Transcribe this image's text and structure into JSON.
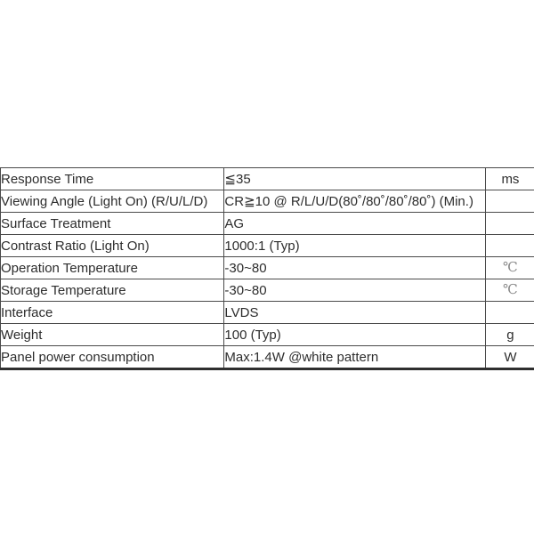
{
  "document": {
    "type": "specification-table",
    "background_color": "#ffffff",
    "text_color": "#2d2d2d",
    "border_color": "#4a4a4a",
    "temp_unit_color": "#8a8a8a"
  },
  "table": {
    "columns": [
      "parameter",
      "value",
      "unit"
    ],
    "rows": [
      {
        "param": "Response Time",
        "value": "≦35",
        "unit": "ms"
      },
      {
        "param": "Viewing Angle (Light On) (R/U/L/D)",
        "value": "CR≧10 @ R/L/U/D(80˚/80˚/80˚/80˚) (Min.)",
        "unit": ""
      },
      {
        "param": "Surface Treatment",
        "value": "AG",
        "unit": ""
      },
      {
        "param": "Contrast Ratio (Light On)",
        "value": "1000:1 (Typ)",
        "unit": ""
      },
      {
        "param": "Operation Temperature",
        "value": "-30~80",
        "unit": "℃"
      },
      {
        "param": "Storage Temperature",
        "value": "-30~80",
        "unit": "℃"
      },
      {
        "param": "Interface",
        "value": "LVDS",
        "unit": ""
      },
      {
        "param": "Weight",
        "value": "100 (Typ)",
        "unit": "g"
      },
      {
        "param": "Panel power consumption",
        "value": "Max:1.4W @white pattern",
        "unit": "W"
      }
    ]
  }
}
